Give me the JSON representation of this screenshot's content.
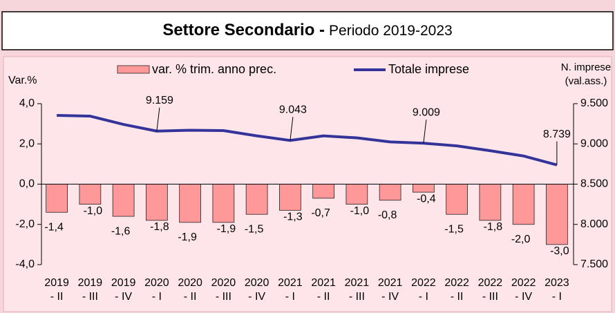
{
  "chart_data": {
    "type": "bar",
    "title": "Settore Secondario -",
    "subtitle": "Periodo 2019-2023",
    "y_label": "Var.%",
    "y2_label": [
      "N. imprese",
      "(val.ass.)"
    ],
    "categories": [
      [
        "2019",
        "- II"
      ],
      [
        "2019",
        "- III"
      ],
      [
        "2019",
        "- IV"
      ],
      [
        "2020",
        "- I"
      ],
      [
        "2020",
        "- II"
      ],
      [
        "2020",
        "- III"
      ],
      [
        "2020",
        "- IV"
      ],
      [
        "2021",
        "- I"
      ],
      [
        "2021",
        "- II"
      ],
      [
        "2021",
        "- III"
      ],
      [
        "2021",
        "- IV"
      ],
      [
        "2022",
        "- I"
      ],
      [
        "2022",
        "- II"
      ],
      [
        "2022",
        "- III"
      ],
      [
        "2022",
        "- IV"
      ],
      [
        "2023",
        "- I"
      ]
    ],
    "series": [
      {
        "name": "var. % trim. anno prec.",
        "type": "bar",
        "color": "#ff9999",
        "axis": "y",
        "values": [
          -1.4,
          -1.0,
          -1.6,
          -1.8,
          -1.9,
          -1.9,
          -1.5,
          -1.3,
          -0.7,
          -1.0,
          -0.8,
          -0.4,
          -1.5,
          -1.8,
          -2.0,
          -3.0
        ],
        "value_labels": [
          "-1,4",
          "-1,0",
          "-1,6",
          "-1,8",
          "-1,9",
          "-1,9",
          "-1,5",
          "-1,3",
          "-0,7",
          "-1,0",
          "-0,8",
          "-0,4",
          "-1,5",
          "-1,8",
          "-2,0",
          "-3,0"
        ]
      },
      {
        "name": "Totale imprese",
        "type": "line",
        "color": "#333399",
        "axis": "y2",
        "values": [
          9354,
          9345,
          9242,
          9159,
          9170,
          9165,
          9100,
          9043,
          9100,
          9075,
          9025,
          9009,
          8975,
          8915,
          8850,
          8739
        ],
        "value_labels": [
          null,
          null,
          null,
          "9.159",
          null,
          null,
          null,
          "9.043",
          null,
          null,
          null,
          "9.009",
          null,
          null,
          null,
          "8.739"
        ]
      }
    ],
    "ylim": [
      -4.0,
      4.0
    ],
    "yticks": [
      {
        "value": -4.0,
        "label": "-4,0"
      },
      {
        "value": -2.0,
        "label": "-2,0"
      },
      {
        "value": 0.0,
        "label": "0,0"
      },
      {
        "value": 2.0,
        "label": "2,0"
      },
      {
        "value": 4.0,
        "label": "4,0"
      }
    ],
    "y2lim": [
      7500,
      9500
    ],
    "y2ticks": [
      {
        "value": 7500,
        "label": "7.500"
      },
      {
        "value": 8000,
        "label": "8.000"
      },
      {
        "value": 8500,
        "label": "8.500"
      },
      {
        "value": 9000,
        "label": "9.000"
      },
      {
        "value": 9500,
        "label": "9.500"
      }
    ]
  }
}
